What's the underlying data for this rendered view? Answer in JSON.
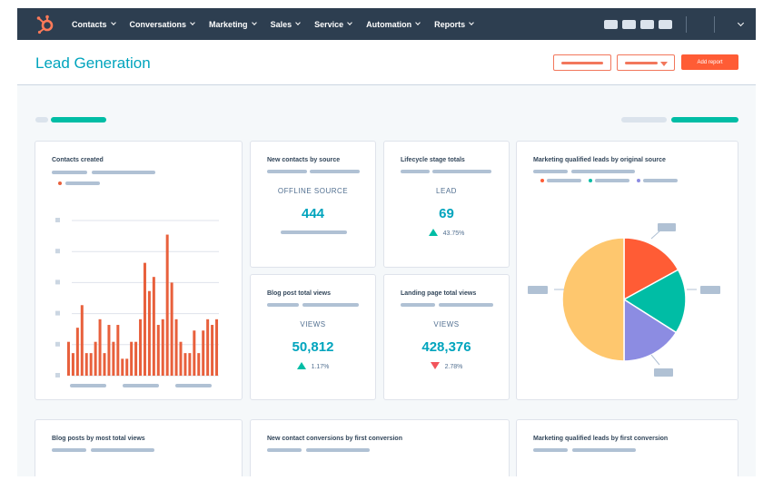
{
  "colors": {
    "nav_bg": "#2d3e50",
    "accent_teal": "#00a4bd",
    "brand_orange": "#ff5c35",
    "bar_orange": "#e8603c",
    "positive": "#00bda5",
    "negative": "#f2545b"
  },
  "icons": {
    "logo": "hubspot-sprocket-icon",
    "nav_chevron": "chevron-down-icon",
    "trend_up": "triangle-up-icon",
    "trend_down": "triangle-down-icon"
  },
  "nav": {
    "items": [
      {
        "label": "Contacts"
      },
      {
        "label": "Conversations"
      },
      {
        "label": "Marketing"
      },
      {
        "label": "Sales"
      },
      {
        "label": "Service"
      },
      {
        "label": "Automation"
      },
      {
        "label": "Reports"
      }
    ]
  },
  "header": {
    "title": "Lead Generation",
    "add_report_label": "Add report"
  },
  "cards": {
    "contacts_created": {
      "title": "Contacts created"
    },
    "new_contacts_by_source": {
      "title": "New contacts by source",
      "label": "OFFLINE SOURCE",
      "value": "444"
    },
    "lifecycle_stage_totals": {
      "title": "Lifecycle stage totals",
      "label": "LEAD",
      "value": "69",
      "change": "43.75%",
      "trend": "up"
    },
    "blog_post_total_views": {
      "title": "Blog post total views",
      "label": "VIEWS",
      "value": "50,812",
      "change": "1.17%",
      "trend": "up"
    },
    "landing_page_total_views": {
      "title": "Landing page total views",
      "label": "VIEWS",
      "value": "428,376",
      "change": "2.78%",
      "trend": "down"
    },
    "mql_by_original_source": {
      "title": "Marketing qualified leads by original source"
    },
    "blog_posts_by_views": {
      "title": "Blog posts by most total views"
    },
    "new_contact_conversions": {
      "title": "New contact conversions by first conversion"
    },
    "mql_by_first_conversion": {
      "title": "Marketing qualified leads by first conversion"
    }
  },
  "chart_data": [
    {
      "type": "bar",
      "values": [
        12,
        8,
        17,
        25,
        8,
        8,
        12,
        20,
        8,
        18,
        12,
        18,
        6,
        6,
        12,
        12,
        20,
        40,
        30,
        35,
        18,
        20,
        50,
        33,
        20,
        12,
        8,
        8,
        16,
        8,
        16,
        20,
        18,
        20
      ],
      "ylim": [
        0,
        55
      ]
    },
    {
      "type": "pie",
      "values": [
        17,
        17,
        16,
        50
      ],
      "colors": [
        "#ff5c35",
        "#00bda5",
        "#8c8ce2",
        "#fec76e"
      ]
    }
  ]
}
